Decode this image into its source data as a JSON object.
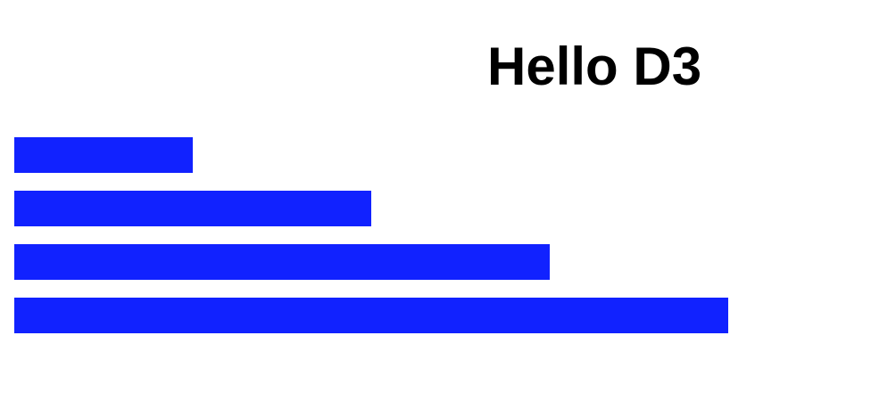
{
  "page": {
    "title": "Hello D3"
  },
  "colors": {
    "bar": "#1122ff",
    "background": "#ffffff",
    "title": "#000000"
  },
  "chart_data": {
    "type": "bar",
    "orientation": "horizontal",
    "title": "",
    "xlabel": "",
    "ylabel": "",
    "categories": [
      "",
      "",
      "",
      ""
    ],
    "values": [
      1,
      2,
      3,
      4
    ],
    "xlim": [
      0,
      5
    ],
    "grid": false,
    "axes_visible": false,
    "legend": "none"
  }
}
